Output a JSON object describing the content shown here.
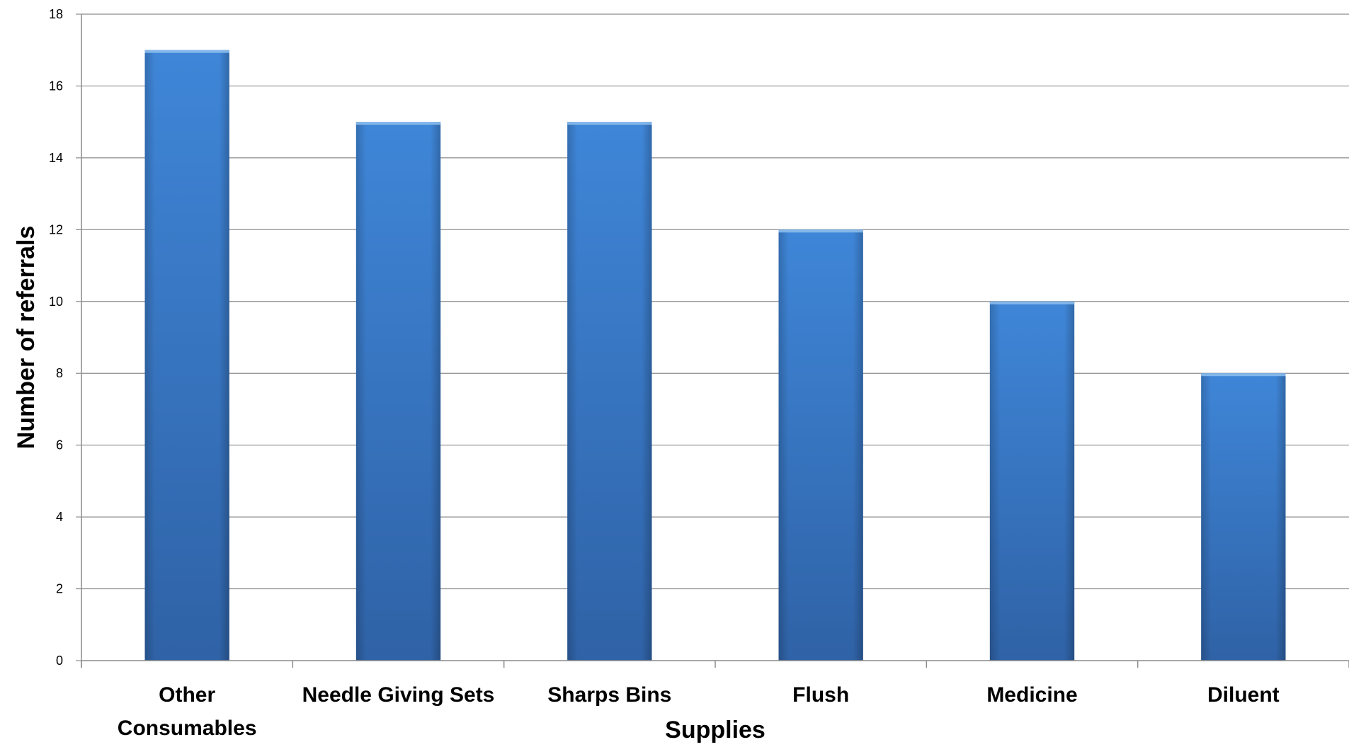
{
  "chart_data": {
    "type": "bar",
    "categories": [
      "Other Consumables",
      "Needle Giving Sets",
      "Sharps Bins",
      "Flush",
      "Medicine",
      "Diluent"
    ],
    "category_lines": [
      [
        "Other",
        "Consumables"
      ],
      [
        "Needle Giving Sets"
      ],
      [
        "Sharps Bins"
      ],
      [
        "Flush"
      ],
      [
        "Medicine"
      ],
      [
        "Diluent"
      ]
    ],
    "values": [
      17,
      15,
      15,
      12,
      10,
      8
    ],
    "xlabel": "Supplies",
    "ylabel": "Number of referrals",
    "ylim": [
      0,
      18
    ],
    "yticks": [
      0,
      2,
      4,
      6,
      8,
      10,
      12,
      14,
      16,
      18
    ],
    "grid": true,
    "legend": "none",
    "bar_color": "#3a78c9"
  }
}
